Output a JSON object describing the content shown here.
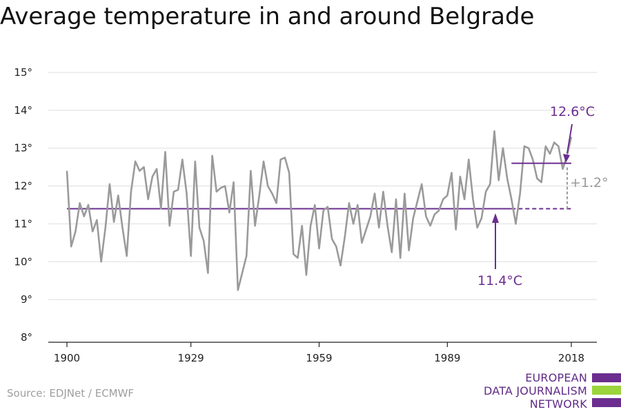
{
  "chart_data": {
    "type": "line",
    "title": "Average temperature in and around Belgrade",
    "xlabel": "",
    "ylabel": "",
    "xlim": [
      1900,
      2018
    ],
    "ylim": [
      8,
      15
    ],
    "x_ticks": [
      "1900",
      "1929",
      "1959",
      "1989",
      "2018"
    ],
    "y_ticks": [
      "8°",
      "9°",
      "10°",
      "11°",
      "12°",
      "13°",
      "14°",
      "15°"
    ],
    "grid": "horizontal",
    "series": [
      {
        "x": [
          1900,
          1901,
          1902,
          1903,
          1904,
          1905,
          1906,
          1907,
          1908,
          1909,
          1910,
          1911,
          1912,
          1913,
          1914,
          1915,
          1916,
          1917,
          1918,
          1919,
          1920,
          1921,
          1922,
          1923,
          1924,
          1925,
          1926,
          1927,
          1928,
          1929,
          1930,
          1931,
          1932,
          1933,
          1934,
          1935,
          1936,
          1937,
          1938,
          1939,
          1940,
          1941,
          1942,
          1943,
          1944,
          1945,
          1946,
          1947,
          1948,
          1949,
          1950,
          1951,
          1952,
          1953,
          1954,
          1955,
          1956,
          1957,
          1958,
          1959,
          1960,
          1961,
          1962,
          1963,
          1964,
          1965,
          1966,
          1967,
          1968,
          1969,
          1970,
          1971,
          1972,
          1973,
          1974,
          1975,
          1976,
          1977,
          1978,
          1979,
          1980,
          1981,
          1982,
          1983,
          1984,
          1985,
          1986,
          1987,
          1988,
          1989,
          1990,
          1991,
          1992,
          1993,
          1994,
          1995,
          1996,
          1997,
          1998,
          1999,
          2000,
          2001,
          2002,
          2003,
          2004,
          2005,
          2006,
          2007,
          2008,
          2009,
          2010,
          2011,
          2012,
          2013,
          2014,
          2015,
          2016,
          2017,
          2018
        ],
        "values": [
          12.4,
          10.4,
          10.8,
          11.55,
          11.2,
          11.5,
          10.8,
          11.1,
          10.0,
          10.9,
          12.05,
          11.05,
          11.75,
          10.9,
          10.15,
          11.85,
          12.65,
          12.4,
          12.5,
          11.65,
          12.25,
          12.45,
          11.4,
          12.9,
          10.95,
          11.85,
          11.9,
          12.7,
          11.8,
          10.15,
          12.65,
          10.9,
          10.55,
          9.7,
          12.8,
          11.85,
          11.95,
          12.0,
          11.3,
          12.1,
          9.25,
          9.7,
          10.15,
          12.4,
          10.95,
          11.75,
          12.65,
          12.0,
          11.8,
          11.55,
          12.7,
          12.75,
          12.35,
          10.2,
          10.1,
          10.95,
          9.65,
          10.95,
          11.5,
          10.35,
          11.35,
          11.45,
          10.6,
          10.4,
          9.9,
          10.65,
          11.55,
          11.0,
          11.5,
          10.5,
          10.85,
          11.2,
          11.8,
          10.9,
          11.85,
          10.95,
          10.25,
          11.65,
          10.1,
          11.8,
          10.3,
          11.15,
          11.6,
          12.05,
          11.2,
          10.95,
          11.25,
          11.35,
          11.65,
          11.75,
          12.35,
          10.85,
          12.25,
          11.65,
          12.7,
          11.65,
          10.9,
          11.15,
          11.85,
          12.05,
          13.45,
          12.15,
          13.0,
          12.2,
          11.65,
          11.0,
          11.8,
          13.05,
          13.0,
          12.7,
          12.2,
          12.1,
          13.05,
          12.85,
          13.15,
          13.05,
          12.45,
          12.8,
          13.3
        ]
      }
    ],
    "annotations": {
      "baseline_label": "11.4°C",
      "baseline_value": 11.4,
      "baseline_x_range": [
        1900,
        2018
      ],
      "recent_label": "12.6°C",
      "recent_value": 12.6,
      "recent_x_range": [
        2004,
        2018
      ],
      "difference_label": "+1.2°"
    },
    "colors": {
      "series": "#9a9a9a",
      "accent": "#6b2d8f",
      "grid": "#dddddd",
      "axis": "#222222"
    }
  },
  "source": "Source: EDJNet / ECMWF",
  "logo": {
    "line1": "EUROPEAN",
    "line2": "DATA JOURNALISM",
    "line3": "NETWORK",
    "colors": [
      "#6b2d8f",
      "#9bd43c",
      "#6b2d8f"
    ]
  }
}
